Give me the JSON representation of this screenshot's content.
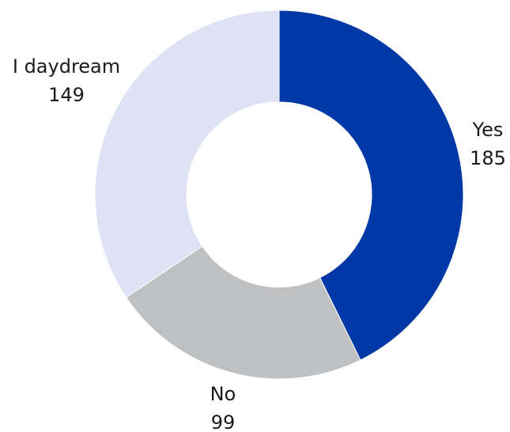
{
  "chart_data": {
    "type": "pie",
    "variant": "donut",
    "slices": [
      {
        "label": "Yes",
        "value": 185,
        "color": "#0038a8"
      },
      {
        "label": "No",
        "value": 99,
        "color": "#bfc0c2"
      },
      {
        "label": "I daydream",
        "value": 149,
        "color": "#dde2f5"
      }
    ],
    "start": "top",
    "direction": "clockwise",
    "legend": "none",
    "labels": "outside, label with value below"
  }
}
